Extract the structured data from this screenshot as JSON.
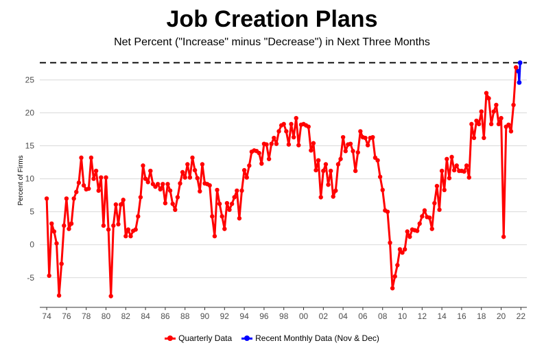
{
  "title": "Job Creation Plans",
  "subtitle": "Net Percent (\"Increase\" minus \"Decrease\") in Next Three Months",
  "colors": {
    "quarterly": "#ff0000",
    "monthly": "#0000ff",
    "reference_line": "#000000",
    "grid": "#d9d9d9"
  },
  "chart_data": {
    "type": "line",
    "title": "Job Creation Plans",
    "subtitle": "Net Percent (\"Increase\" minus \"Decrease\") in Next Three Months",
    "ylabel": "Percent of Firms",
    "xlabel": "",
    "xlim": [
      1973.3,
      2022.6
    ],
    "ylim": [
      -9.5,
      29
    ],
    "grid": "horizontal",
    "legend_position": "bottom",
    "x_ticks": [
      1974,
      1976,
      1978,
      1980,
      1982,
      1984,
      1986,
      1988,
      1990,
      1992,
      1994,
      1996,
      1998,
      2000,
      2002,
      2004,
      2006,
      2008,
      2010,
      2012,
      2014,
      2016,
      2018,
      2020,
      2022
    ],
    "x_tick_labels": [
      "74",
      "76",
      "78",
      "80",
      "82",
      "84",
      "86",
      "88",
      "90",
      "92",
      "94",
      "96",
      "98",
      "00",
      "02",
      "04",
      "06",
      "08",
      "10",
      "12",
      "14",
      "16",
      "18",
      "20",
      "22"
    ],
    "y_ticks": [
      -5,
      0,
      5,
      10,
      15,
      20,
      25
    ],
    "y_tick_labels": [
      "-5",
      "0",
      "5",
      "10",
      "15",
      "20",
      "25"
    ],
    "reference_line": {
      "y": 27.6,
      "style": "dashed"
    },
    "series": [
      {
        "name": "Quarterly Data",
        "color": "#ff0000",
        "x_start": 1974.0,
        "x_step": 0.25,
        "values": [
          7,
          -4.7,
          3.2,
          2,
          0.2,
          -7.7,
          -2.9,
          2.9,
          7,
          2.4,
          3.2,
          7,
          8,
          9.4,
          13.2,
          9,
          8.4,
          8.5,
          13.2,
          10,
          11.2,
          8.2,
          10.2,
          2.9,
          10.2,
          2.3,
          -7.8,
          2.9,
          6.1,
          3.1,
          6.1,
          6.8,
          1.3,
          2.3,
          1.3,
          2.1,
          2.3,
          4.3,
          7.2,
          12,
          10,
          9.5,
          11.2,
          9.2,
          8.8,
          9.2,
          8.4,
          9.2,
          6.3,
          9.2,
          8.2,
          6.2,
          5.3,
          7.2,
          9.3,
          11,
          10.2,
          12.2,
          10.2,
          13.2,
          11.3,
          10.1,
          8.1,
          12.2,
          9.3,
          9.2,
          9,
          4.3,
          1.3,
          8.3,
          6.2,
          4.3,
          2.4,
          6.3,
          5.3,
          6.2,
          7.2,
          8.2,
          4,
          8.2,
          11.3,
          10.2,
          12,
          14.1,
          14.3,
          14.2,
          13.9,
          12.3,
          15.3,
          15.2,
          13,
          15.3,
          16.2,
          15.3,
          17.2,
          18.1,
          18.3,
          17.2,
          15.2,
          18.3,
          16.3,
          19.2,
          15.1,
          18.2,
          18.3,
          18.1,
          17.9,
          14.3,
          15.4,
          11.3,
          12.8,
          7.2,
          11.2,
          12.2,
          9.1,
          11.2,
          7.3,
          8.2,
          12.2,
          13,
          16.3,
          14.2,
          15.2,
          15.3,
          14.2,
          11.2,
          14,
          17.2,
          16.3,
          16.2,
          15.1,
          16.2,
          16.3,
          13.2,
          12.8,
          10.3,
          8.3,
          5.2,
          5,
          0.3,
          -6.6,
          -4.8,
          -3.1,
          -0.7,
          -1.2,
          -0.7,
          2,
          1.2,
          2.3,
          2.2,
          2.1,
          3.2,
          4.3,
          5.2,
          4.2,
          4.1,
          2.4,
          6.3,
          8.9,
          5.3,
          11.2,
          8.3,
          13,
          10.1,
          13.3,
          11.3,
          12,
          11.2,
          11.2,
          11.1,
          12,
          10.2,
          18.3,
          16.2,
          18.8,
          18.3,
          20.2,
          16.2,
          23,
          22.2,
          18.3,
          20.2,
          21.2,
          18.3,
          19.2,
          1.2,
          17.9,
          18.2,
          17.2,
          21.2,
          26.9,
          26.3
        ]
      },
      {
        "name": "Recent Monthly Data (Nov & Dec)",
        "color": "#0000ff",
        "points": [
          {
            "x": 2021.75,
            "y": 26.3
          },
          {
            "x": 2021.83,
            "y": 24.6
          },
          {
            "x": 2021.92,
            "y": 27.6
          }
        ]
      }
    ]
  },
  "legend": {
    "items": [
      {
        "label": "Quarterly Data",
        "color": "#ff0000"
      },
      {
        "label": "Recent Monthly Data (Nov & Dec)",
        "color": "#0000ff"
      }
    ]
  }
}
